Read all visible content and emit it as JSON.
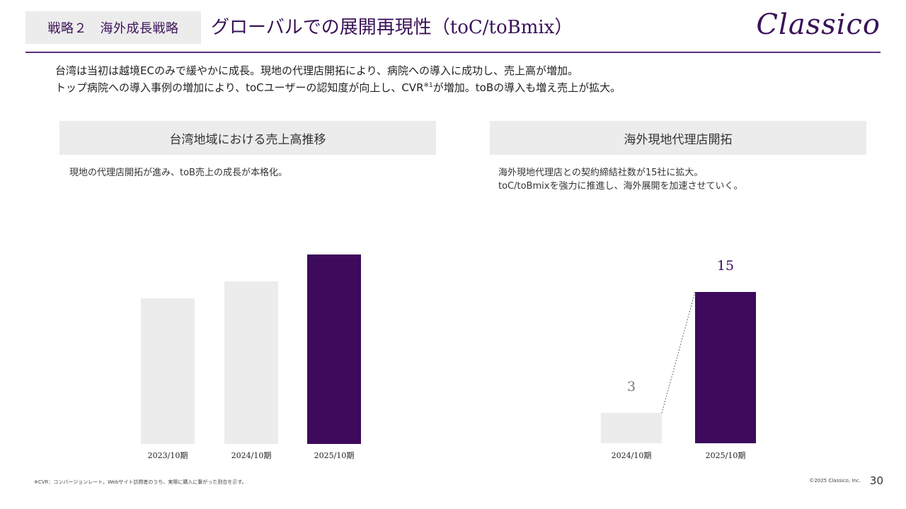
{
  "header": {
    "tag": "戦略２　海外成長戦略",
    "title": "グローバルでの展開再現性（toC/toBmix）",
    "logo": "Classico"
  },
  "intro": {
    "line1": "台湾は当初は越境ECのみで緩やかに成長。現地の代理店開拓により、病院への導入に成功し、売上高が増加。",
    "line2_pre": "トップ病院への導入事例の増加により、toCユーザーの認知度が向上し、CVR",
    "line2_sup": "※1",
    "line2_post": "が増加。toBの導入も増え売上が拡大。"
  },
  "left_panel": {
    "heading": "台湾地域における売上高推移",
    "description": "現地の代理店開拓が進み、toB売上の成長が本格化。"
  },
  "right_panel": {
    "heading": "海外現地代理店開拓",
    "description_line1": "海外現地代理店との契約締結社数が15社に拡大。",
    "description_line2": "toC/toBmixを強力に推進し、海外展開を加速させていく。"
  },
  "chart_data": [
    {
      "type": "bar",
      "categories": [
        "2023/10期",
        "2024/10期",
        "2025/10期"
      ],
      "values": [
        0.77,
        0.86,
        1.0
      ],
      "value_scale": "relative (no values printed)",
      "colors": [
        "#ececec",
        "#ececec",
        "#3d0a5c"
      ],
      "title": "台湾地域における売上高推移",
      "ylim": [
        0,
        1
      ],
      "grid": false
    },
    {
      "type": "bar",
      "categories": [
        "2024/10期",
        "2025/10期"
      ],
      "values": [
        3,
        15
      ],
      "data_labels": [
        "3",
        "15"
      ],
      "colors": [
        "#ececec",
        "#3d0a5c"
      ],
      "label_colors": [
        "#777777",
        "#3d0a5c"
      ],
      "title": "海外現地代理店開拓",
      "ylim": [
        0,
        16.6
      ],
      "connector": "dotted",
      "grid": false
    }
  ],
  "footer": {
    "footnote": "※CVR：コンバージョンレート。Webサイト訪問者のうち、実際に購入に繋がった割合を示す。",
    "copyright": "©2025 Classico, Inc.",
    "page": "30"
  }
}
